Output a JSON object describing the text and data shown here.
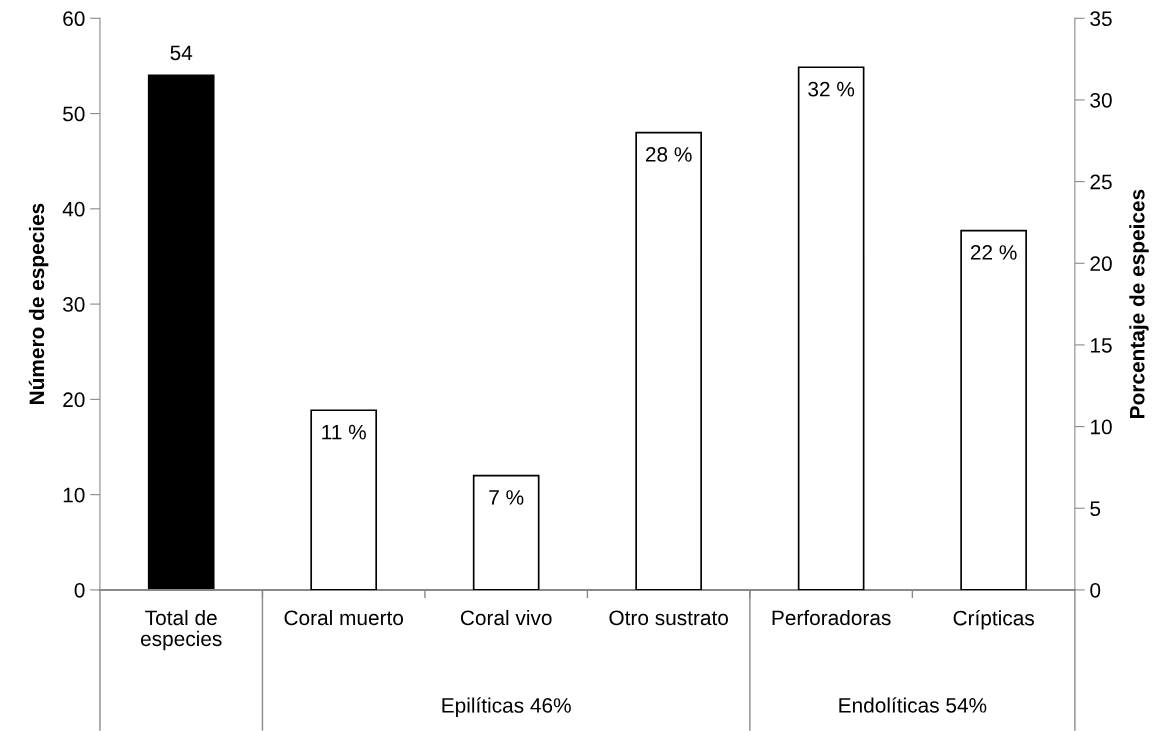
{
  "chart_data": {
    "type": "bar",
    "categories": [
      "Total de\nespecies",
      "Coral muerto",
      "Coral vivo",
      "Otro sustrato",
      "Perforadoras",
      "Crípticas"
    ],
    "series": [
      {
        "color": "#000000",
        "axis": "y",
        "values": [
          54,
          null,
          null,
          null,
          null,
          null
        ],
        "value_labels": [
          "54",
          null,
          null,
          null,
          null,
          null
        ]
      },
      {
        "color": "#ffffff",
        "axis": "y2",
        "values": [
          null,
          11,
          7,
          28,
          32,
          22
        ],
        "value_labels": [
          null,
          "11 %",
          "7 %",
          "28 %",
          "32 %",
          "22 %"
        ]
      }
    ],
    "ylabel": "Número de especies",
    "y2label": "Porcentaje de espeices",
    "ylim": [
      0,
      60
    ],
    "yticks": [
      0,
      10,
      20,
      30,
      40,
      50,
      60
    ],
    "y2lim": [
      0,
      35
    ],
    "y2ticks": [
      0,
      5,
      10,
      15,
      20,
      25,
      30,
      35
    ],
    "annotations": [
      "Epilíticas 46%",
      "Endolíticas 54%"
    ],
    "grid": false,
    "legend": false
  }
}
